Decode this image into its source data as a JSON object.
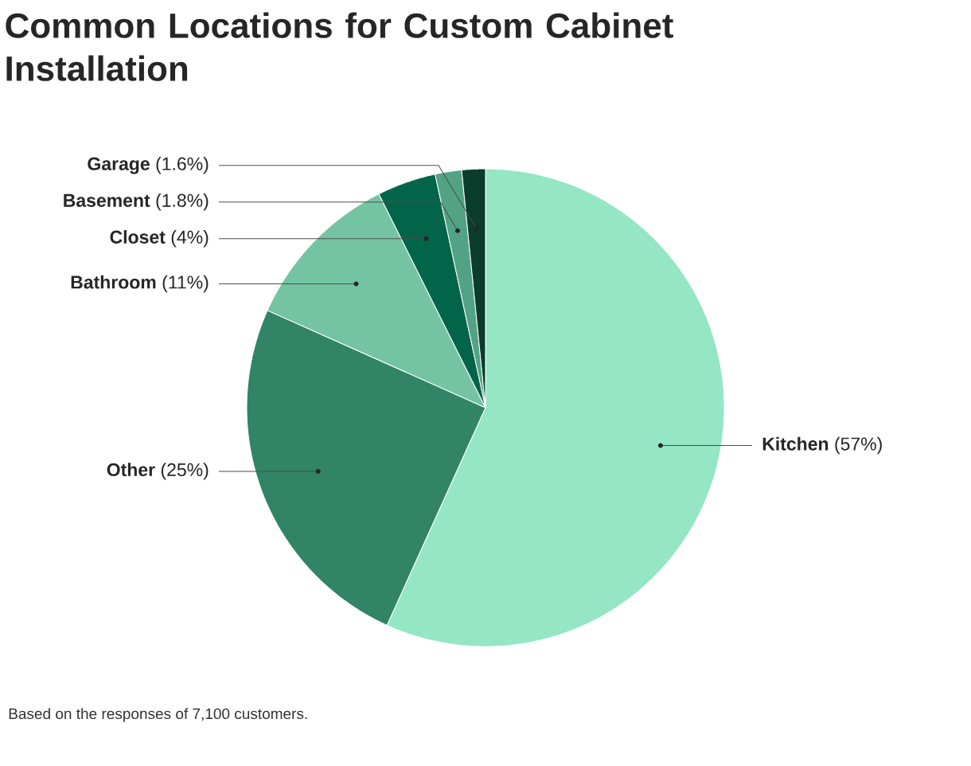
{
  "chart_data": {
    "type": "pie",
    "title": "Common Locations for Custom Cabinet Installation",
    "categories": [
      "Kitchen",
      "Other",
      "Bathroom",
      "Closet",
      "Basement",
      "Garage"
    ],
    "values": [
      57,
      25,
      11,
      4,
      1.8,
      1.6
    ],
    "value_labels": [
      "(57%)",
      "(25%)",
      "(11%)",
      "(4%)",
      "(1.8%)",
      "(1.6%)"
    ],
    "colors": [
      "#94e6c5",
      "#318466",
      "#74c4a4",
      "#02654a",
      "#52a386",
      "#0a3d2b"
    ],
    "annotations": [
      "Based on the responses of 7,100 customers."
    ]
  }
}
